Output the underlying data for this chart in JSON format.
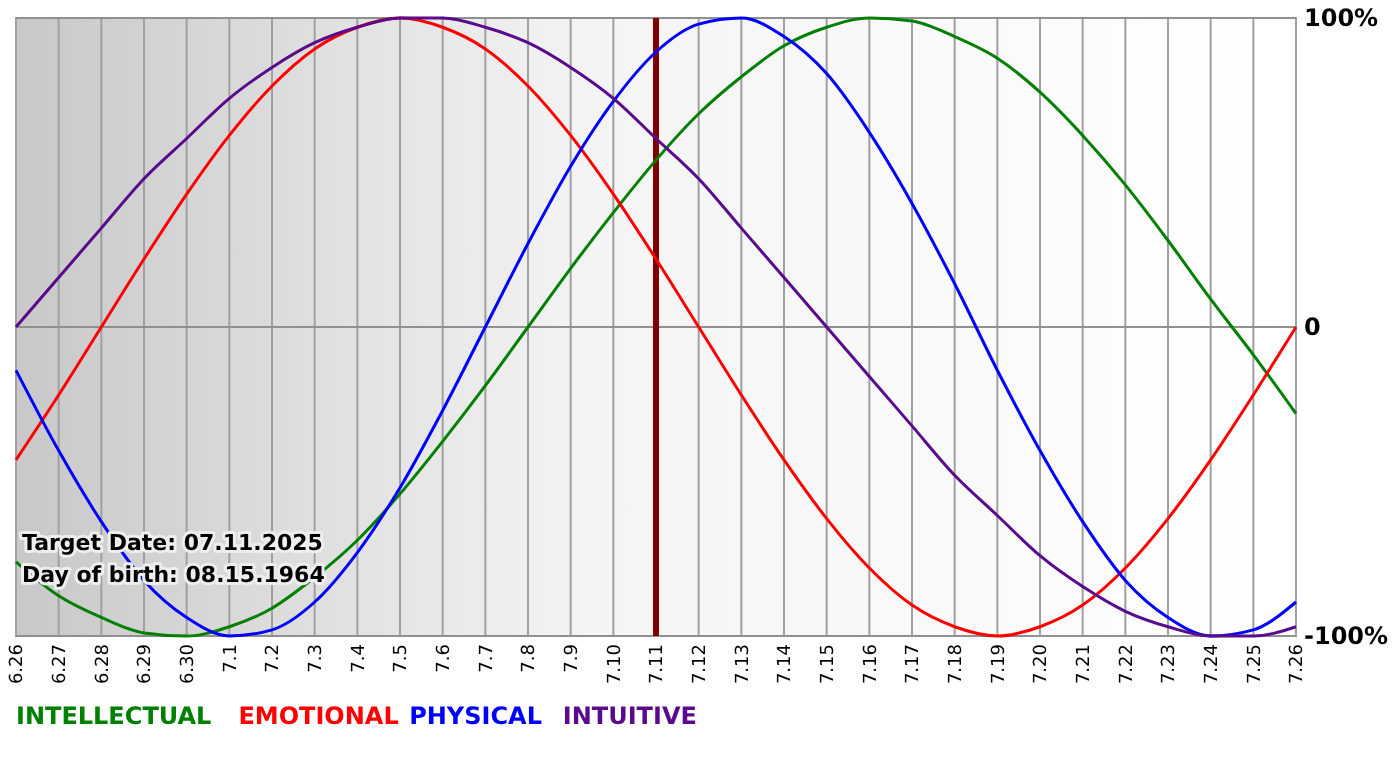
{
  "chart_data": {
    "type": "line",
    "categories": [
      "6.26",
      "6.27",
      "6.28",
      "6.29",
      "6.30",
      "7.1",
      "7.2",
      "7.3",
      "7.4",
      "7.5",
      "7.6",
      "7.7",
      "7.8",
      "7.9",
      "7.10",
      "7.11",
      "7.12",
      "7.13",
      "7.14",
      "7.15",
      "7.16",
      "7.17",
      "7.18",
      "7.19",
      "7.20",
      "7.21",
      "7.22",
      "7.23",
      "7.24",
      "7.25",
      "7.26"
    ],
    "series": [
      {
        "name": "INTELLECTUAL",
        "color": "#008000",
        "values": [
          -76,
          -87,
          -94,
          -99,
          -100,
          -97,
          -91,
          -81,
          -69,
          -54,
          -37,
          -19,
          0,
          19,
          37,
          54,
          69,
          81,
          91,
          97,
          100,
          99,
          94,
          87,
          76,
          62,
          46,
          28,
          9,
          -9,
          -28
        ]
      },
      {
        "name": "EMOTIONAL",
        "color": "#ff0000",
        "values": [
          -43,
          -22,
          0,
          22,
          43,
          62,
          78,
          90,
          97,
          100,
          97,
          90,
          78,
          62,
          43,
          22,
          0,
          -22,
          -43,
          -62,
          -78,
          -90,
          -97,
          -100,
          -97,
          -90,
          -78,
          -62,
          -43,
          -22,
          0
        ]
      },
      {
        "name": "PHYSICAL",
        "color": "#0000ff",
        "values": [
          -14,
          -40,
          -63,
          -82,
          -94,
          -100,
          -98,
          -89,
          -73,
          -52,
          -27,
          0,
          27,
          52,
          73,
          89,
          98,
          100,
          94,
          82,
          63,
          40,
          14,
          -14,
          -40,
          -63,
          -82,
          -94,
          -100,
          -98,
          -89
        ]
      },
      {
        "name": "INTUITIVE",
        "color": "#5a0a8c",
        "values": [
          0,
          16,
          32,
          48,
          61,
          74,
          84,
          92,
          97,
          100,
          100,
          97,
          92,
          84,
          74,
          61,
          48,
          32,
          16,
          0,
          -16,
          -32,
          -48,
          -61,
          -74,
          -84,
          -92,
          -97,
          -100,
          -100,
          -97
        ]
      }
    ],
    "ylim": [
      -100,
      100
    ],
    "yticks": [
      {
        "value": 100,
        "label": "100%"
      },
      0,
      {
        "value": -100,
        "label": "-100%"
      }
    ],
    "grid": true,
    "legend": "bottom left",
    "ref_lines": [
      {
        "axis": "x",
        "value": "7.11",
        "color": "#800000"
      }
    ],
    "annotations": [
      "Target Date: 07.11.2025",
      "Day of birth: 08.15.1964"
    ]
  }
}
